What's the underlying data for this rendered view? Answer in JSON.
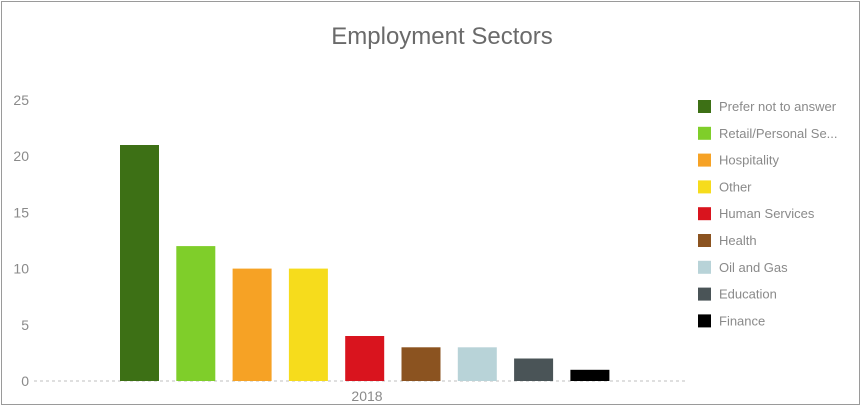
{
  "chart_data": {
    "type": "bar",
    "title": "Employment Sectors",
    "categories": [
      "2018"
    ],
    "ylim": [
      0,
      25
    ],
    "yticks": [
      0,
      5,
      10,
      15,
      20,
      25
    ],
    "grid": false,
    "legend_position": "right",
    "series": [
      {
        "name": "Prefer not to answer",
        "legend_label": "Prefer not to answer",
        "values": [
          21
        ],
        "color": "#3d7015"
      },
      {
        "name": "Retail/Personal Services",
        "legend_label": "Retail/Personal Se...",
        "values": [
          12
        ],
        "color": "#7fce2a"
      },
      {
        "name": "Hospitality",
        "legend_label": "Hospitality",
        "values": [
          10
        ],
        "color": "#f6a225"
      },
      {
        "name": "Other",
        "legend_label": "Other",
        "values": [
          10
        ],
        "color": "#f6dc1c"
      },
      {
        "name": "Human Services",
        "legend_label": "Human Services",
        "values": [
          4
        ],
        "color": "#d9141e"
      },
      {
        "name": "Health",
        "legend_label": "Health",
        "values": [
          3
        ],
        "color": "#8b5320"
      },
      {
        "name": "Oil and Gas",
        "legend_label": "Oil and Gas",
        "values": [
          3
        ],
        "color": "#b8d3d8"
      },
      {
        "name": "Education",
        "legend_label": "Education",
        "values": [
          2
        ],
        "color": "#4a5457"
      },
      {
        "name": "Finance",
        "legend_label": "Finance",
        "values": [
          1
        ],
        "color": "#000000"
      }
    ]
  }
}
